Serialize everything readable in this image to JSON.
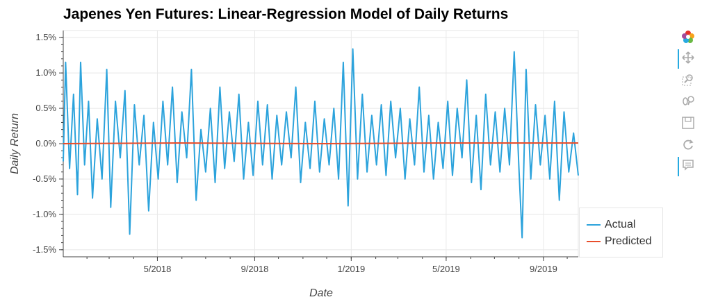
{
  "chart_data": {
    "type": "line",
    "title": "Japenes Yen Futures: Linear-Regression Model of Daily Returns",
    "xlabel": "Date",
    "ylabel": "Daily Return",
    "x_range": [
      "2018-01-02",
      "2019-10-15"
    ],
    "y_range": [
      -1.6,
      1.6
    ],
    "y_ticks": [
      -1.5,
      -1.0,
      -0.5,
      0.0,
      0.5,
      1.0,
      1.5
    ],
    "y_tick_labels": [
      "-1.5%",
      "-1.0%",
      "-0.5%",
      "0.0%",
      "0.5%",
      "1.0%",
      "1.5%"
    ],
    "x_ticks": [
      "2018-05-01",
      "2018-09-01",
      "2019-01-01",
      "2019-05-01",
      "2019-09-01"
    ],
    "x_tick_labels": [
      "5/2018",
      "9/2018",
      "1/2019",
      "5/2019",
      "9/2019"
    ],
    "grid": true,
    "legend_position": "bottom-right",
    "series": [
      {
        "name": "Actual",
        "color": "#2ca3dc",
        "points": [
          [
            "2018-01-02",
            -0.25
          ],
          [
            "2018-01-05",
            1.15
          ],
          [
            "2018-01-10",
            -0.35
          ],
          [
            "2018-01-15",
            0.7
          ],
          [
            "2018-01-20",
            -0.72
          ],
          [
            "2018-01-24",
            1.15
          ],
          [
            "2018-01-29",
            -0.3
          ],
          [
            "2018-02-03",
            0.6
          ],
          [
            "2018-02-08",
            -0.77
          ],
          [
            "2018-02-14",
            0.35
          ],
          [
            "2018-02-20",
            -0.5
          ],
          [
            "2018-02-26",
            1.05
          ],
          [
            "2018-03-03",
            -0.9
          ],
          [
            "2018-03-09",
            0.6
          ],
          [
            "2018-03-15",
            -0.2
          ],
          [
            "2018-03-21",
            0.75
          ],
          [
            "2018-03-27",
            -1.28
          ],
          [
            "2018-04-02",
            0.55
          ],
          [
            "2018-04-08",
            -0.3
          ],
          [
            "2018-04-14",
            0.4
          ],
          [
            "2018-04-20",
            -0.95
          ],
          [
            "2018-04-26",
            0.3
          ],
          [
            "2018-05-02",
            -0.5
          ],
          [
            "2018-05-08",
            0.6
          ],
          [
            "2018-05-14",
            -0.3
          ],
          [
            "2018-05-20",
            0.8
          ],
          [
            "2018-05-26",
            -0.55
          ],
          [
            "2018-06-01",
            0.45
          ],
          [
            "2018-06-07",
            -0.2
          ],
          [
            "2018-06-13",
            1.05
          ],
          [
            "2018-06-19",
            -0.8
          ],
          [
            "2018-06-25",
            0.2
          ],
          [
            "2018-07-01",
            -0.4
          ],
          [
            "2018-07-07",
            0.5
          ],
          [
            "2018-07-13",
            -0.55
          ],
          [
            "2018-07-19",
            0.8
          ],
          [
            "2018-07-25",
            -0.35
          ],
          [
            "2018-07-31",
            0.45
          ],
          [
            "2018-08-06",
            -0.25
          ],
          [
            "2018-08-12",
            0.7
          ],
          [
            "2018-08-18",
            -0.5
          ],
          [
            "2018-08-24",
            0.3
          ],
          [
            "2018-08-30",
            -0.45
          ],
          [
            "2018-09-05",
            0.6
          ],
          [
            "2018-09-11",
            -0.3
          ],
          [
            "2018-09-17",
            0.55
          ],
          [
            "2018-09-23",
            -0.5
          ],
          [
            "2018-09-29",
            0.4
          ],
          [
            "2018-10-05",
            -0.3
          ],
          [
            "2018-10-11",
            0.45
          ],
          [
            "2018-10-17",
            -0.2
          ],
          [
            "2018-10-23",
            0.8
          ],
          [
            "2018-10-29",
            -0.55
          ],
          [
            "2018-11-04",
            0.3
          ],
          [
            "2018-11-10",
            -0.35
          ],
          [
            "2018-11-16",
            0.6
          ],
          [
            "2018-11-22",
            -0.4
          ],
          [
            "2018-11-28",
            0.35
          ],
          [
            "2018-12-04",
            -0.3
          ],
          [
            "2018-12-10",
            0.5
          ],
          [
            "2018-12-16",
            -0.5
          ],
          [
            "2018-12-22",
            1.15
          ],
          [
            "2018-12-28",
            -0.88
          ],
          [
            "2019-01-03",
            1.34
          ],
          [
            "2019-01-09",
            -0.5
          ],
          [
            "2019-01-15",
            0.7
          ],
          [
            "2019-01-21",
            -0.4
          ],
          [
            "2019-01-27",
            0.4
          ],
          [
            "2019-02-02",
            -0.3
          ],
          [
            "2019-02-08",
            0.55
          ],
          [
            "2019-02-14",
            -0.45
          ],
          [
            "2019-02-20",
            0.6
          ],
          [
            "2019-02-26",
            -0.2
          ],
          [
            "2019-03-04",
            0.5
          ],
          [
            "2019-03-10",
            -0.5
          ],
          [
            "2019-03-16",
            0.35
          ],
          [
            "2019-03-22",
            -0.3
          ],
          [
            "2019-03-28",
            0.8
          ],
          [
            "2019-04-03",
            -0.4
          ],
          [
            "2019-04-09",
            0.4
          ],
          [
            "2019-04-15",
            -0.5
          ],
          [
            "2019-04-21",
            0.3
          ],
          [
            "2019-04-27",
            -0.35
          ],
          [
            "2019-05-03",
            0.6
          ],
          [
            "2019-05-09",
            -0.45
          ],
          [
            "2019-05-15",
            0.5
          ],
          [
            "2019-05-21",
            -0.2
          ],
          [
            "2019-05-27",
            0.9
          ],
          [
            "2019-06-02",
            -0.55
          ],
          [
            "2019-06-08",
            0.4
          ],
          [
            "2019-06-14",
            -0.65
          ],
          [
            "2019-06-20",
            0.7
          ],
          [
            "2019-06-26",
            -0.3
          ],
          [
            "2019-07-02",
            0.45
          ],
          [
            "2019-07-08",
            -0.4
          ],
          [
            "2019-07-14",
            0.5
          ],
          [
            "2019-07-20",
            -0.3
          ],
          [
            "2019-07-26",
            1.3
          ],
          [
            "2019-08-01",
            -0.35
          ],
          [
            "2019-08-05",
            -1.33
          ],
          [
            "2019-08-10",
            1.05
          ],
          [
            "2019-08-16",
            -0.5
          ],
          [
            "2019-08-22",
            0.55
          ],
          [
            "2019-08-28",
            -0.3
          ],
          [
            "2019-09-03",
            0.4
          ],
          [
            "2019-09-09",
            -0.5
          ],
          [
            "2019-09-15",
            0.6
          ],
          [
            "2019-09-21",
            -0.8
          ],
          [
            "2019-09-27",
            0.45
          ],
          [
            "2019-10-03",
            -0.4
          ],
          [
            "2019-10-09",
            0.15
          ],
          [
            "2019-10-15",
            -0.45
          ]
        ]
      },
      {
        "name": "Predicted",
        "color": "#e84e2c",
        "points": [
          [
            "2018-01-02",
            0.0
          ],
          [
            "2018-06-01",
            0.01
          ],
          [
            "2018-12-01",
            0.0
          ],
          [
            "2019-05-01",
            0.01
          ],
          [
            "2019-10-15",
            0.01
          ]
        ]
      }
    ]
  },
  "toolbar": {
    "tools": [
      {
        "name": "bokeh-logo-icon",
        "active": false
      },
      {
        "name": "pan-icon",
        "active": true
      },
      {
        "name": "box-zoom-icon",
        "active": false
      },
      {
        "name": "wheel-zoom-icon",
        "active": false
      },
      {
        "name": "save-icon",
        "active": false
      },
      {
        "name": "reset-icon",
        "active": false
      },
      {
        "name": "hover-icon",
        "active": true
      }
    ]
  }
}
